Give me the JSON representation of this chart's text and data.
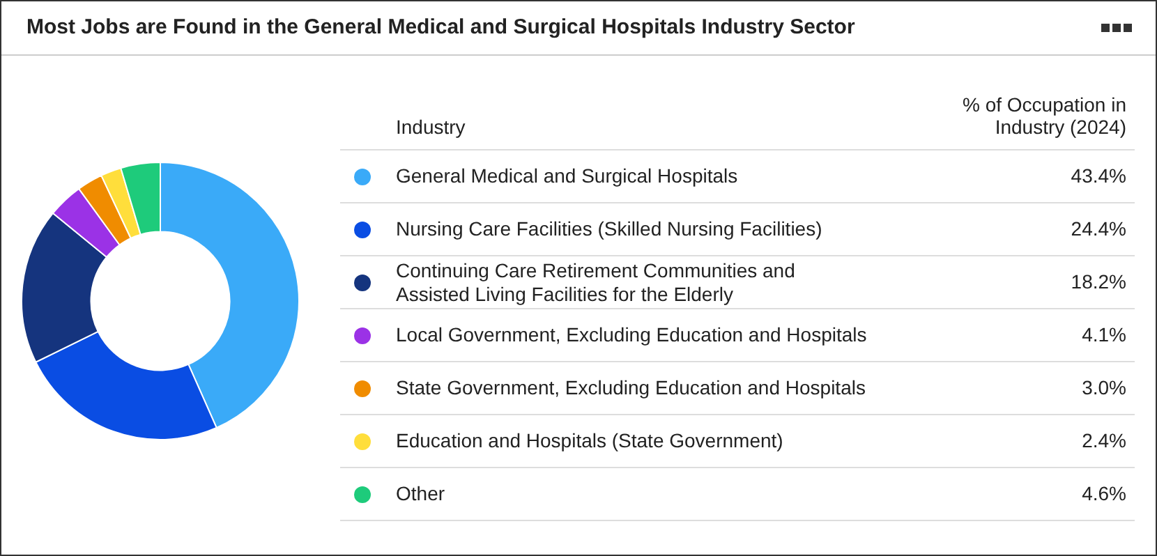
{
  "chart_data": {
    "type": "donut",
    "title": "Most Jobs are Found in the General Medical and Surgical Hospitals Industry Sector",
    "legend_title": "Industry",
    "annotations": [
      "% of Occupation in Industry (2024)"
    ],
    "categories": [
      "General Medical and Surgical Hospitals",
      "Nursing Care Facilities (Skilled Nursing Facilities)",
      "Continuing Care Retirement Communities and Assisted Living Facilities for the Elderly",
      "Local Government, Excluding Education and Hospitals",
      "State Government, Excluding Education and Hospitals",
      "Education and Hospitals (State Government)",
      "Other"
    ],
    "values": [
      43.4,
      24.4,
      18.2,
      4.1,
      3.0,
      2.4,
      4.6
    ],
    "value_labels": [
      "43.4%",
      "24.4%",
      "18.2%",
      "4.1%",
      "3.0%",
      "2.4%",
      "4.6%"
    ],
    "colors": [
      "#3aaaf8",
      "#0a4de3",
      "#15347e",
      "#9b32e6",
      "#f08c00",
      "#ffde3b",
      "#1ecb7b"
    ],
    "legend": "right"
  }
}
